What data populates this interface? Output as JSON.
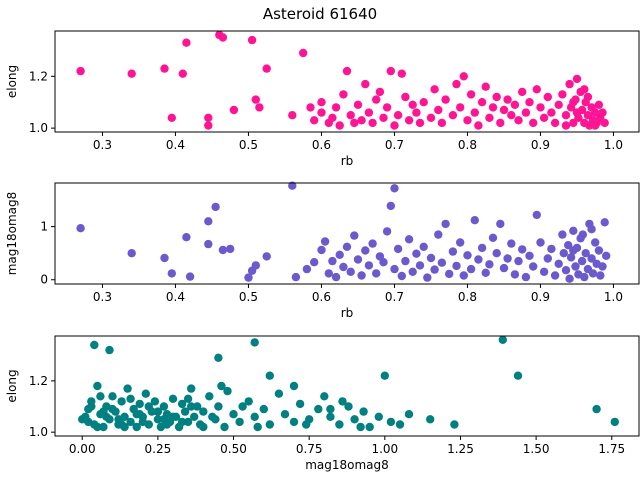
{
  "figure": {
    "title": "Asteroid 61640"
  },
  "chart_data": [
    {
      "type": "scatter",
      "xlabel": "rb",
      "ylabel": "elong",
      "xlim": [
        0.235,
        1.035
      ],
      "ylim": [
        0.985,
        1.375
      ],
      "xticks": [
        0.3,
        0.4,
        0.5,
        0.6,
        0.7,
        0.8,
        0.9,
        1.0
      ],
      "xtick_labels": [
        "0.3",
        "0.4",
        "0.5",
        "0.6",
        "0.7",
        "0.8",
        "0.9",
        "1.0"
      ],
      "yticks": [
        1.0,
        1.2
      ],
      "ytick_labels": [
        "1.0",
        "1.2"
      ],
      "color": "#ff1493",
      "points": [
        [
          0.27,
          1.22
        ],
        [
          0.34,
          1.21
        ],
        [
          0.385,
          1.23
        ],
        [
          0.395,
          1.04
        ],
        [
          0.41,
          1.21
        ],
        [
          0.415,
          1.33
        ],
        [
          0.445,
          1.04
        ],
        [
          0.445,
          1.01
        ],
        [
          0.46,
          1.36
        ],
        [
          0.465,
          1.35
        ],
        [
          0.48,
          1.07
        ],
        [
          0.505,
          1.34
        ],
        [
          0.51,
          1.11
        ],
        [
          0.515,
          1.08
        ],
        [
          0.525,
          1.23
        ],
        [
          0.56,
          1.05
        ],
        [
          0.575,
          1.29
        ],
        [
          0.585,
          1.08
        ],
        [
          0.59,
          1.03
        ],
        [
          0.6,
          1.1
        ],
        [
          0.6,
          1.06
        ],
        [
          0.61,
          1.02
        ],
        [
          0.615,
          1.04
        ],
        [
          0.62,
          1.08
        ],
        [
          0.625,
          1.01
        ],
        [
          0.63,
          1.13
        ],
        [
          0.635,
          1.22
        ],
        [
          0.64,
          1.05
        ],
        [
          0.645,
          1.02
        ],
        [
          0.65,
          1.09
        ],
        [
          0.655,
          1.03
        ],
        [
          0.66,
          1.17
        ],
        [
          0.665,
          1.06
        ],
        [
          0.67,
          1.02
        ],
        [
          0.675,
          1.11
        ],
        [
          0.68,
          1.14
        ],
        [
          0.685,
          1.04
        ],
        [
          0.69,
          1.08
        ],
        [
          0.695,
          1.22
        ],
        [
          0.7,
          1.01
        ],
        [
          0.705,
          1.05
        ],
        [
          0.71,
          1.21
        ],
        [
          0.715,
          1.12
        ],
        [
          0.72,
          1.03
        ],
        [
          0.725,
          1.09
        ],
        [
          0.73,
          1.06
        ],
        [
          0.735,
          1.02
        ],
        [
          0.74,
          1.1
        ],
        [
          0.75,
          1.04
        ],
        [
          0.755,
          1.15
        ],
        [
          0.76,
          1.07
        ],
        [
          0.765,
          1.02
        ],
        [
          0.77,
          1.11
        ],
        [
          0.78,
          1.05
        ],
        [
          0.785,
          1.17
        ],
        [
          0.79,
          1.08
        ],
        [
          0.795,
          1.2
        ],
        [
          0.8,
          1.03
        ],
        [
          0.805,
          1.13
        ],
        [
          0.81,
          1.06
        ],
        [
          0.815,
          1.01
        ],
        [
          0.82,
          1.1
        ],
        [
          0.825,
          1.16
        ],
        [
          0.83,
          1.04
        ],
        [
          0.835,
          1.08
        ],
        [
          0.84,
          1.12
        ],
        [
          0.845,
          1.02
        ],
        [
          0.85,
          1.07
        ],
        [
          0.855,
          1.11
        ],
        [
          0.86,
          1.05
        ],
        [
          0.865,
          1.09
        ],
        [
          0.87,
          1.03
        ],
        [
          0.875,
          1.14
        ],
        [
          0.88,
          1.06
        ],
        [
          0.885,
          1.1
        ],
        [
          0.89,
          1.02
        ],
        [
          0.895,
          1.15
        ],
        [
          0.9,
          1.08
        ],
        [
          0.905,
          1.04
        ],
        [
          0.91,
          1.12
        ],
        [
          0.915,
          1.06
        ],
        [
          0.92,
          1.02
        ],
        [
          0.925,
          1.09
        ],
        [
          0.93,
          1.13
        ],
        [
          0.935,
          1.05
        ],
        [
          0.94,
          1.17
        ],
        [
          0.942,
          1.08
        ],
        [
          0.945,
          1.02
        ],
        [
          0.948,
          1.11
        ],
        [
          0.95,
          1.06
        ],
        [
          0.952,
          1.04
        ],
        [
          0.955,
          1.14
        ],
        [
          0.957,
          1.07
        ],
        [
          0.96,
          1.02
        ],
        [
          0.962,
          1.1
        ],
        [
          0.965,
          1.05
        ],
        [
          0.967,
          1.01
        ],
        [
          0.97,
          1.08
        ],
        [
          0.972,
          1.03
        ],
        [
          0.975,
          1.06
        ],
        [
          0.977,
          1.02
        ],
        [
          0.98,
          1.09
        ],
        [
          0.982,
          1.04
        ],
        [
          0.985,
          1.06
        ],
        [
          0.988,
          1.02
        ],
        [
          0.95,
          1.19
        ],
        [
          0.935,
          1.01
        ],
        [
          0.965,
          1.12
        ],
        [
          0.975,
          1.01
        ],
        [
          0.945,
          1.1
        ],
        [
          0.96,
          1.15
        ]
      ]
    },
    {
      "type": "scatter",
      "xlabel": "rb",
      "ylabel": "mag18omag8",
      "xlim": [
        0.235,
        1.035
      ],
      "ylim": [
        -0.08,
        1.82
      ],
      "xticks": [
        0.3,
        0.4,
        0.5,
        0.6,
        0.7,
        0.8,
        0.9,
        1.0
      ],
      "xtick_labels": [
        "0.3",
        "0.4",
        "0.5",
        "0.6",
        "0.7",
        "0.8",
        "0.9",
        "1.0"
      ],
      "yticks": [
        0,
        1
      ],
      "ytick_labels": [
        "0",
        "1"
      ],
      "color": "#6a5acd",
      "points": [
        [
          0.27,
          0.97
        ],
        [
          0.34,
          0.5
        ],
        [
          0.385,
          0.41
        ],
        [
          0.395,
          0.12
        ],
        [
          0.415,
          0.8
        ],
        [
          0.42,
          0.06
        ],
        [
          0.445,
          1.1
        ],
        [
          0.445,
          0.67
        ],
        [
          0.455,
          1.37
        ],
        [
          0.465,
          0.56
        ],
        [
          0.475,
          0.58
        ],
        [
          0.5,
          0.04
        ],
        [
          0.505,
          0.17
        ],
        [
          0.51,
          0.27
        ],
        [
          0.525,
          0.44
        ],
        [
          0.56,
          1.77
        ],
        [
          0.565,
          0.05
        ],
        [
          0.58,
          0.2
        ],
        [
          0.59,
          0.33
        ],
        [
          0.6,
          0.56
        ],
        [
          0.605,
          0.72
        ],
        [
          0.61,
          0.12
        ],
        [
          0.615,
          0.35
        ],
        [
          0.62,
          0.05
        ],
        [
          0.625,
          0.47
        ],
        [
          0.63,
          0.24
        ],
        [
          0.635,
          0.62
        ],
        [
          0.64,
          0.15
        ],
        [
          0.645,
          0.83
        ],
        [
          0.65,
          0.38
        ],
        [
          0.655,
          0.08
        ],
        [
          0.66,
          0.55
        ],
        [
          0.665,
          0.27
        ],
        [
          0.67,
          0.68
        ],
        [
          0.675,
          0.12
        ],
        [
          0.68,
          0.44
        ],
        [
          0.685,
          0.33
        ],
        [
          0.69,
          0.91
        ],
        [
          0.695,
          1.39
        ],
        [
          0.7,
          1.72
        ],
        [
          0.7,
          0.2
        ],
        [
          0.705,
          0.58
        ],
        [
          0.71,
          0.07
        ],
        [
          0.715,
          0.35
        ],
        [
          0.72,
          0.76
        ],
        [
          0.725,
          0.15
        ],
        [
          0.73,
          0.49
        ],
        [
          0.735,
          0.27
        ],
        [
          0.74,
          0.62
        ],
        [
          0.745,
          0.04
        ],
        [
          0.75,
          0.41
        ],
        [
          0.755,
          0.19
        ],
        [
          0.76,
          0.85
        ],
        [
          0.765,
          0.32
        ],
        [
          0.77,
          1.05
        ],
        [
          0.775,
          0.11
        ],
        [
          0.78,
          0.53
        ],
        [
          0.785,
          0.26
        ],
        [
          0.79,
          0.7
        ],
        [
          0.795,
          0.08
        ],
        [
          0.8,
          0.46
        ],
        [
          0.805,
          0.2
        ],
        [
          0.81,
          1.12
        ],
        [
          0.815,
          0.38
        ],
        [
          0.82,
          0.6
        ],
        [
          0.825,
          0.13
        ],
        [
          0.83,
          0.29
        ],
        [
          0.835,
          0.79
        ],
        [
          0.84,
          0.5
        ],
        [
          0.845,
          1.05
        ],
        [
          0.85,
          0.22
        ],
        [
          0.855,
          0.4
        ],
        [
          0.86,
          0.68
        ],
        [
          0.865,
          0.1
        ],
        [
          0.87,
          0.35
        ],
        [
          0.875,
          0.57
        ],
        [
          0.88,
          0.05
        ],
        [
          0.885,
          0.45
        ],
        [
          0.89,
          0.25
        ],
        [
          0.895,
          1.22
        ],
        [
          0.9,
          0.7
        ],
        [
          0.905,
          0.15
        ],
        [
          0.91,
          0.4
        ],
        [
          0.915,
          0.58
        ],
        [
          0.92,
          0.08
        ],
        [
          0.925,
          0.3
        ],
        [
          0.93,
          0.85
        ],
        [
          0.932,
          0.5
        ],
        [
          0.935,
          0.18
        ],
        [
          0.938,
          0.65
        ],
        [
          0.94,
          0.02
        ],
        [
          0.942,
          0.42
        ],
        [
          0.945,
          0.92
        ],
        [
          0.948,
          0.25
        ],
        [
          0.95,
          0.6
        ],
        [
          0.952,
          0.1
        ],
        [
          0.955,
          0.78
        ],
        [
          0.957,
          0.35
        ],
        [
          0.96,
          0.05
        ],
        [
          0.962,
          0.5
        ],
        [
          0.965,
          0.2
        ],
        [
          0.967,
          1.05
        ],
        [
          0.97,
          0.4
        ],
        [
          0.972,
          0.12
        ],
        [
          0.975,
          0.7
        ],
        [
          0.977,
          0.3
        ],
        [
          0.98,
          0.55
        ],
        [
          0.982,
          0.08
        ],
        [
          0.985,
          0.25
        ],
        [
          0.988,
          1.08
        ],
        [
          0.99,
          0.45
        ],
        [
          0.945,
          0.55
        ],
        [
          0.958,
          0.85
        ],
        [
          0.97,
          0.95
        ]
      ]
    },
    {
      "type": "scatter",
      "xlabel": "mag18omag8",
      "ylabel": "elong",
      "xlim": [
        -0.09,
        1.84
      ],
      "ylim": [
        0.985,
        1.375
      ],
      "xticks": [
        0.0,
        0.25,
        0.5,
        0.75,
        1.0,
        1.25,
        1.5,
        1.75
      ],
      "xtick_labels": [
        "0.00",
        "0.25",
        "0.50",
        "0.75",
        "1.00",
        "1.25",
        "1.50",
        "1.75"
      ],
      "yticks": [
        1.0,
        1.2
      ],
      "ytick_labels": [
        "1.0",
        "1.2"
      ],
      "color": "#008080",
      "points": [
        [
          0.04,
          1.34
        ],
        [
          0.09,
          1.32
        ],
        [
          0.45,
          1.29
        ],
        [
          0.57,
          1.35
        ],
        [
          1.39,
          1.36
        ],
        [
          1.44,
          1.22
        ],
        [
          1.7,
          1.09
        ],
        [
          1.76,
          1.04
        ],
        [
          0.0,
          1.05
        ],
        [
          0.02,
          1.09
        ],
        [
          0.03,
          1.12
        ],
        [
          0.04,
          1.03
        ],
        [
          0.05,
          1.18
        ],
        [
          0.06,
          1.07
        ],
        [
          0.07,
          1.02
        ],
        [
          0.08,
          1.1
        ],
        [
          0.09,
          1.05
        ],
        [
          0.1,
          1.14
        ],
        [
          0.11,
          1.08
        ],
        [
          0.12,
          1.03
        ],
        [
          0.13,
          1.12
        ],
        [
          0.14,
          1.06
        ],
        [
          0.15,
          1.17
        ],
        [
          0.16,
          1.04
        ],
        [
          0.17,
          1.09
        ],
        [
          0.18,
          1.02
        ],
        [
          0.19,
          1.11
        ],
        [
          0.2,
          1.06
        ],
        [
          0.21,
          1.15
        ],
        [
          0.22,
          1.03
        ],
        [
          0.23,
          1.08
        ],
        [
          0.24,
          1.12
        ],
        [
          0.25,
          1.05
        ],
        [
          0.26,
          1.02
        ],
        [
          0.27,
          1.1
        ],
        [
          0.28,
          1.07
        ],
        [
          0.29,
          1.04
        ],
        [
          0.3,
          1.13
        ],
        [
          0.31,
          1.06
        ],
        [
          0.32,
          1.02
        ],
        [
          0.33,
          1.11
        ],
        [
          0.34,
          1.08
        ],
        [
          0.35,
          1.04
        ],
        [
          0.36,
          1.17
        ],
        [
          0.37,
          1.06
        ],
        [
          0.38,
          1.1
        ],
        [
          0.39,
          1.03
        ],
        [
          0.4,
          1.08
        ],
        [
          0.42,
          1.14
        ],
        [
          0.44,
          1.05
        ],
        [
          0.45,
          1.1
        ],
        [
          0.47,
          1.02
        ],
        [
          0.48,
          1.16
        ],
        [
          0.5,
          1.07
        ],
        [
          0.52,
          1.04
        ],
        [
          0.55,
          1.12
        ],
        [
          0.57,
          1.06
        ],
        [
          0.6,
          1.09
        ],
        [
          0.62,
          1.03
        ],
        [
          0.65,
          1.15
        ],
        [
          0.67,
          1.07
        ],
        [
          0.7,
          1.04
        ],
        [
          0.72,
          1.11
        ],
        [
          0.75,
          1.05
        ],
        [
          0.78,
          1.09
        ],
        [
          0.8,
          1.14
        ],
        [
          0.82,
          1.06
        ],
        [
          0.85,
          1.03
        ],
        [
          0.88,
          1.1
        ],
        [
          0.9,
          1.05
        ],
        [
          0.93,
          1.08
        ],
        [
          0.95,
          1.02
        ],
        [
          0.98,
          1.06
        ],
        [
          1.0,
          1.22
        ],
        [
          1.02,
          1.04
        ],
        [
          1.05,
          1.03
        ],
        [
          1.08,
          1.07
        ],
        [
          1.15,
          1.05
        ],
        [
          1.23,
          1.03
        ],
        [
          0.01,
          1.06
        ],
        [
          0.03,
          1.1
        ],
        [
          0.05,
          1.02
        ],
        [
          0.06,
          1.14
        ],
        [
          0.08,
          1.06
        ],
        [
          0.1,
          1.09
        ],
        [
          0.12,
          1.05
        ],
        [
          0.14,
          1.02
        ],
        [
          0.16,
          1.13
        ],
        [
          0.18,
          1.07
        ],
        [
          0.2,
          1.04
        ],
        [
          0.22,
          1.1
        ],
        [
          0.25,
          1.08
        ],
        [
          0.28,
          1.03
        ],
        [
          0.3,
          1.06
        ],
        [
          0.33,
          1.04
        ],
        [
          0.36,
          1.1
        ],
        [
          0.4,
          1.02
        ],
        [
          0.46,
          1.18
        ],
        [
          0.58,
          1.02
        ],
        [
          0.62,
          1.22
        ],
        [
          0.7,
          1.18
        ],
        [
          0.74,
          1.03
        ],
        [
          0.82,
          1.09
        ],
        [
          0.86,
          1.12
        ],
        [
          0.92,
          1.02
        ],
        [
          0.02,
          1.04
        ],
        [
          0.07,
          1.08
        ],
        [
          0.13,
          1.03
        ],
        [
          0.19,
          1.07
        ],
        [
          0.27,
          1.05
        ],
        [
          0.35,
          1.13
        ],
        [
          0.43,
          1.06
        ],
        [
          0.53,
          1.1
        ]
      ]
    }
  ]
}
